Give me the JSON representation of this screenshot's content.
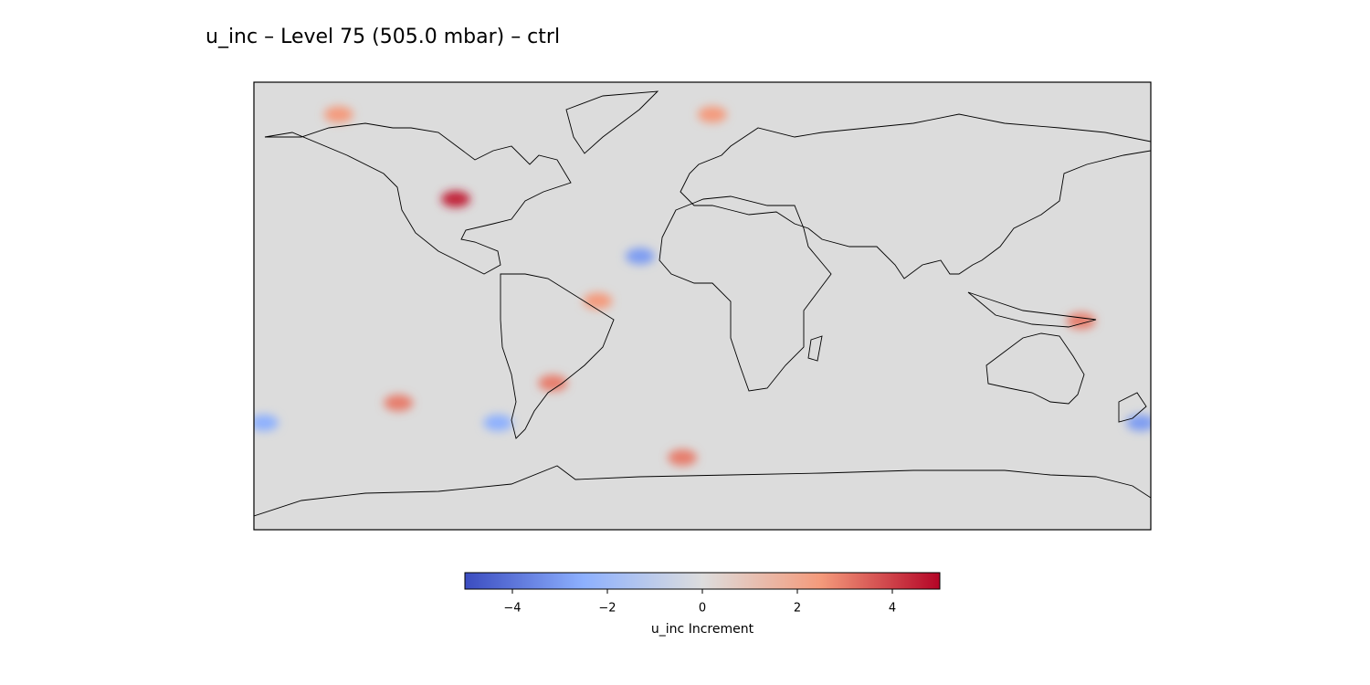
{
  "chart_data": {
    "type": "map",
    "title": "u_inc – Level 75 (505.0 mbar) – ctrl",
    "xlim": [
      -180,
      180
    ],
    "ylim": [
      -90,
      90
    ],
    "lon": [
      -99,
      -25,
      -8,
      -146,
      152,
      176,
      -122,
      -60,
      -82,
      4,
      -176,
      -42
    ],
    "lat": [
      43,
      20,
      -61,
      77,
      -6,
      -47,
      -39,
      -31,
      -47,
      77,
      -47,
      2
    ],
    "values": [
      4.5,
      -3,
      3,
      2.5,
      3,
      -3,
      3,
      3,
      -2.5,
      2.5,
      -2.5,
      2.5
    ],
    "colorbar": {
      "label": "u_inc Increment",
      "lim": [
        -5,
        5
      ],
      "ticks": [
        {
          "value": -4,
          "label": "−4"
        },
        {
          "value": -2,
          "label": "−2"
        },
        0,
        2,
        4
      ],
      "colormap": [
        "#3b4cc0",
        "#8db0fe",
        "#dddddd",
        "#f49a7b",
        "#b40426"
      ]
    }
  }
}
